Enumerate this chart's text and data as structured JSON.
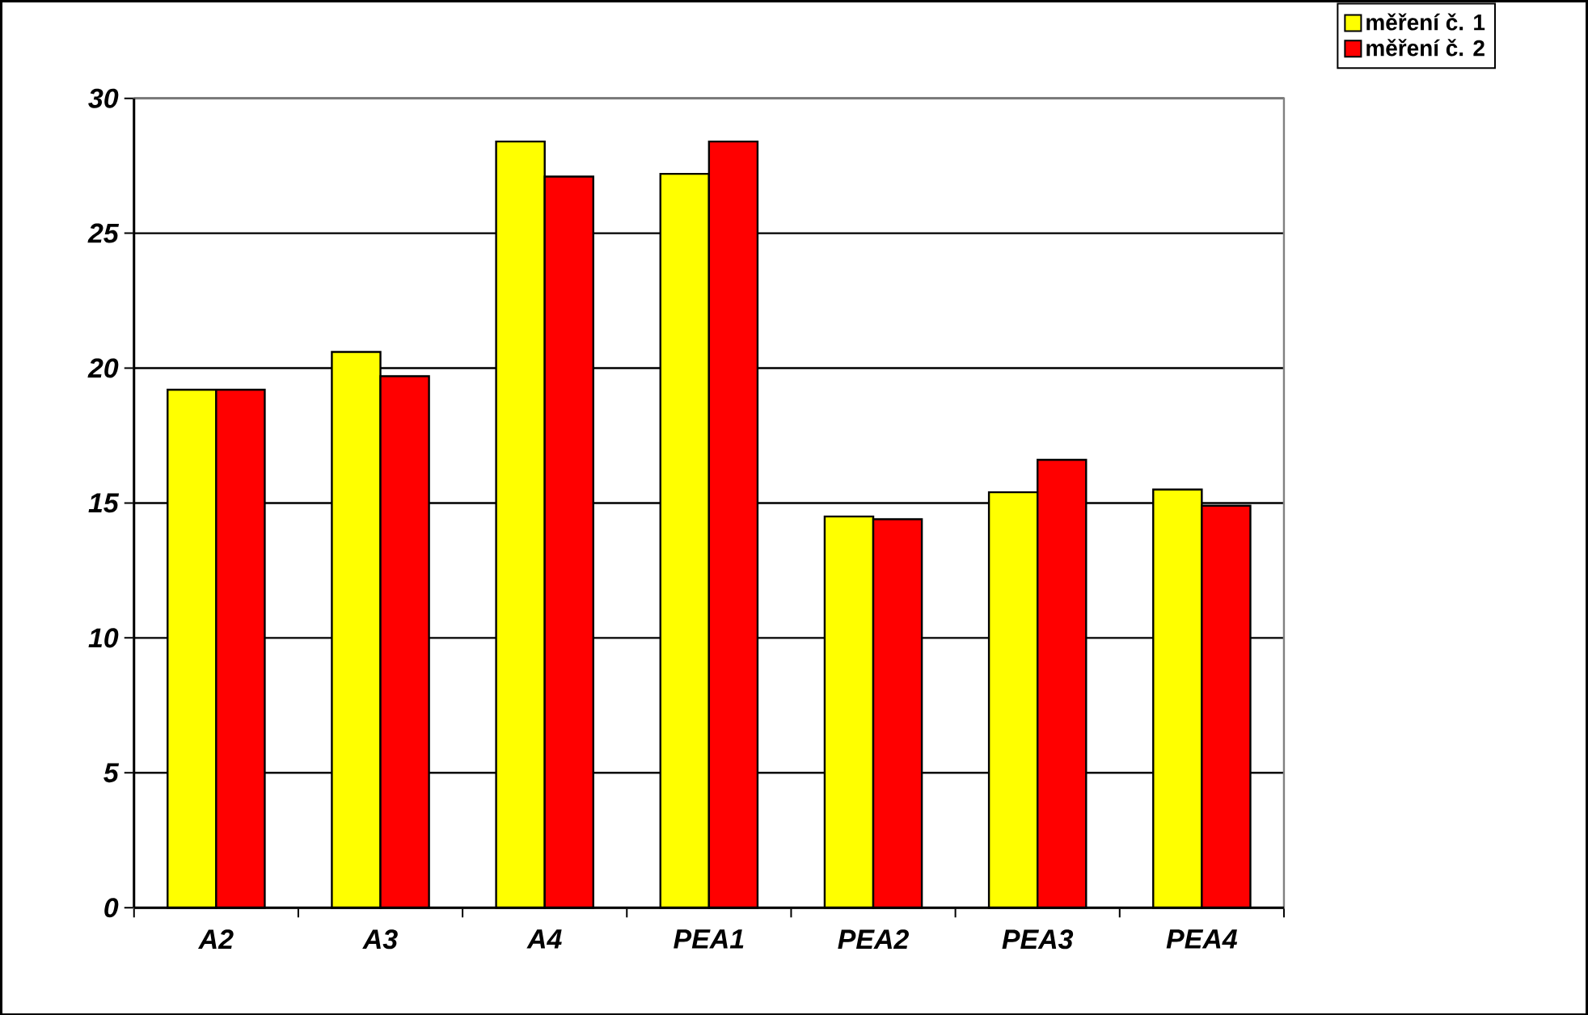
{
  "chart_data": {
    "type": "bar",
    "categories": [
      "A2",
      "A3",
      "A4",
      "PEA1",
      "PEA2",
      "PEA3",
      "PEA4"
    ],
    "series": [
      {
        "name": "měření č. 1",
        "color": "#ffff00",
        "values": [
          19.2,
          20.6,
          28.4,
          27.2,
          14.5,
          15.4,
          15.5
        ]
      },
      {
        "name": "měření č. 2",
        "color": "#ff0000",
        "values": [
          19.2,
          19.7,
          27.1,
          28.4,
          14.4,
          16.6,
          14.9
        ]
      }
    ],
    "ylim": [
      0,
      30
    ],
    "yticks": [
      0,
      5,
      10,
      15,
      20,
      25,
      30
    ],
    "grid": "y",
    "legend": "top right"
  }
}
